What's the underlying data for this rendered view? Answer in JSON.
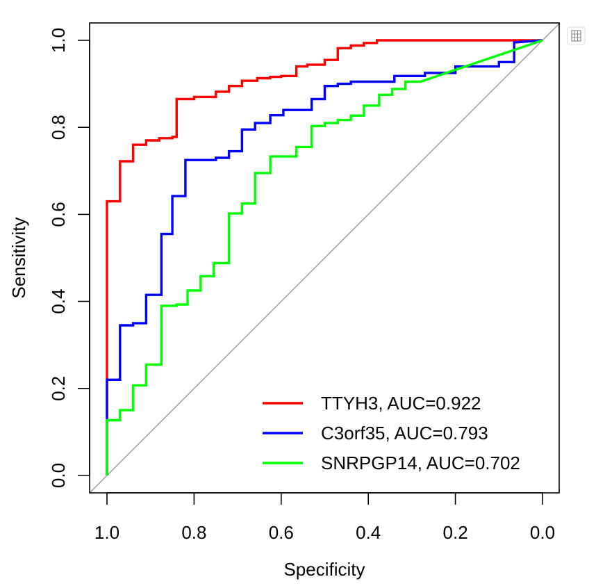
{
  "chart_data": {
    "type": "line",
    "title": "",
    "xlabel": "Specificity",
    "ylabel": "Sensitivity",
    "xlim": [
      1.0,
      0.0
    ],
    "ylim": [
      0.0,
      1.0
    ],
    "x_reversed": true,
    "x_ticks": [
      "1.0",
      "0.8",
      "0.6",
      "0.4",
      "0.2",
      "0.0"
    ],
    "y_ticks": [
      "0.0",
      "0.2",
      "0.4",
      "0.6",
      "0.8",
      "1.0"
    ],
    "grid": false,
    "legend_position": "bottom-right",
    "reference_line": {
      "from": [
        1.0,
        0.0
      ],
      "to": [
        0.0,
        1.0
      ],
      "color": "#a6a6a6"
    },
    "series": [
      {
        "name": "TTYH3, AUC=0.922",
        "color": "#ff0000",
        "x": [
          1.0,
          1.0,
          0.97,
          0.97,
          0.94,
          0.94,
          0.91,
          0.91,
          0.88,
          0.88,
          0.85,
          0.85,
          0.84,
          0.84,
          0.8,
          0.8,
          0.75,
          0.75,
          0.72,
          0.72,
          0.69,
          0.69,
          0.655,
          0.655,
          0.625,
          0.625,
          0.6,
          0.6,
          0.565,
          0.565,
          0.54,
          0.54,
          0.5,
          0.5,
          0.47,
          0.47,
          0.44,
          0.44,
          0.41,
          0.41,
          0.38,
          0.38,
          0.0
        ],
        "y": [
          0.0,
          0.63,
          0.63,
          0.722,
          0.722,
          0.76,
          0.76,
          0.77,
          0.77,
          0.775,
          0.775,
          0.778,
          0.778,
          0.865,
          0.865,
          0.87,
          0.87,
          0.882,
          0.882,
          0.895,
          0.895,
          0.907,
          0.907,
          0.913,
          0.913,
          0.916,
          0.916,
          0.918,
          0.918,
          0.94,
          0.94,
          0.944,
          0.944,
          0.955,
          0.955,
          0.982,
          0.982,
          0.988,
          0.988,
          0.994,
          0.994,
          1.0,
          1.0
        ]
      },
      {
        "name": "C3orf35, AUC=0.793",
        "color": "#0000ff",
        "x": [
          1.0,
          1.0,
          0.97,
          0.97,
          0.94,
          0.94,
          0.91,
          0.91,
          0.875,
          0.875,
          0.85,
          0.85,
          0.82,
          0.82,
          0.785,
          0.785,
          0.75,
          0.75,
          0.72,
          0.72,
          0.69,
          0.69,
          0.66,
          0.66,
          0.625,
          0.625,
          0.595,
          0.595,
          0.53,
          0.53,
          0.5,
          0.5,
          0.47,
          0.47,
          0.44,
          0.44,
          0.34,
          0.34,
          0.27,
          0.27,
          0.2,
          0.2,
          0.1,
          0.1,
          0.065,
          0.065,
          0.0
        ],
        "y": [
          0.0,
          0.22,
          0.22,
          0.345,
          0.345,
          0.35,
          0.35,
          0.415,
          0.415,
          0.555,
          0.555,
          0.642,
          0.642,
          0.725,
          0.725,
          0.725,
          0.725,
          0.73,
          0.73,
          0.745,
          0.745,
          0.795,
          0.795,
          0.81,
          0.81,
          0.828,
          0.828,
          0.84,
          0.84,
          0.865,
          0.865,
          0.895,
          0.895,
          0.9,
          0.9,
          0.905,
          0.905,
          0.918,
          0.918,
          0.925,
          0.925,
          0.94,
          0.94,
          0.95,
          0.95,
          0.995,
          1.0
        ]
      },
      {
        "name": "SNRPGP14, AUC=0.702",
        "color": "#00ff00",
        "x": [
          1.0,
          1.0,
          0.97,
          0.97,
          0.94,
          0.94,
          0.91,
          0.91,
          0.875,
          0.875,
          0.84,
          0.84,
          0.815,
          0.815,
          0.785,
          0.785,
          0.755,
          0.755,
          0.72,
          0.72,
          0.69,
          0.69,
          0.66,
          0.66,
          0.625,
          0.625,
          0.565,
          0.565,
          0.53,
          0.53,
          0.5,
          0.5,
          0.47,
          0.47,
          0.44,
          0.44,
          0.41,
          0.41,
          0.375,
          0.375,
          0.345,
          0.345,
          0.315,
          0.315,
          0.28,
          0.0
        ],
        "y": [
          0.0,
          0.127,
          0.127,
          0.15,
          0.15,
          0.207,
          0.207,
          0.255,
          0.255,
          0.39,
          0.39,
          0.393,
          0.393,
          0.425,
          0.425,
          0.458,
          0.458,
          0.488,
          0.488,
          0.602,
          0.602,
          0.625,
          0.625,
          0.695,
          0.695,
          0.733,
          0.733,
          0.755,
          0.755,
          0.803,
          0.803,
          0.81,
          0.81,
          0.817,
          0.817,
          0.827,
          0.827,
          0.85,
          0.85,
          0.875,
          0.875,
          0.888,
          0.888,
          0.905,
          0.905,
          1.0
        ]
      }
    ]
  }
}
